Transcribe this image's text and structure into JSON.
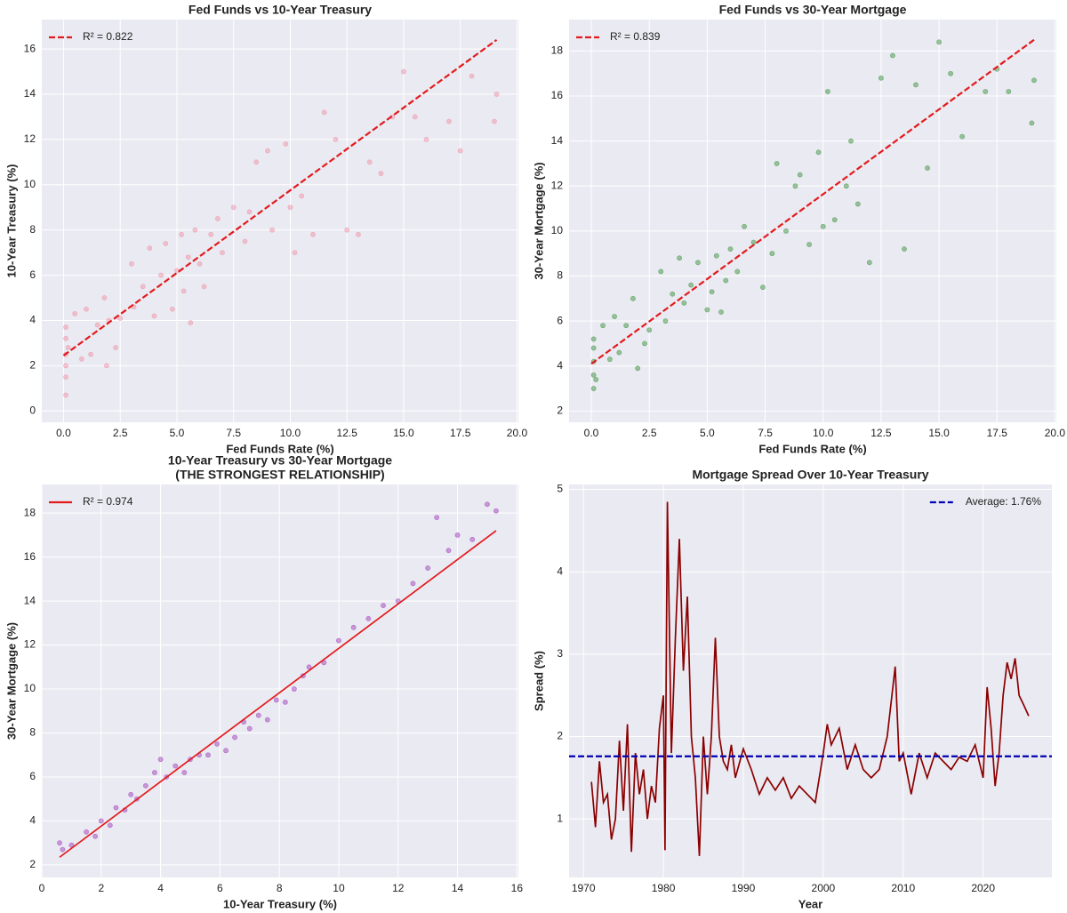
{
  "chart_data": [
    {
      "type": "scatter",
      "title": [
        "Fed Funds vs 10-Year Treasury"
      ],
      "xlabel": "Fed Funds Rate (%)",
      "ylabel": "10-Year Treasury (%)",
      "xlim": [
        -0.96,
        20.06
      ],
      "ylim": [
        -0.5,
        17.3
      ],
      "xticks": [
        {
          "value": 0,
          "label": "0.0"
        },
        2.5,
        {
          "value": 5,
          "label": "5.0"
        },
        7.5,
        {
          "value": 10,
          "label": "10.0"
        },
        12.5,
        {
          "value": 15,
          "label": "15.0"
        },
        17.5,
        {
          "value": 20,
          "label": "20.0"
        }
      ],
      "yticks": [
        0,
        2,
        4,
        6,
        8,
        10,
        12,
        14,
        16
      ],
      "grid": true,
      "legend": "upper left",
      "series": [
        {
          "type": "scatter",
          "color": "#f08ca0",
          "x": [
            0.1,
            0.1,
            0.1,
            0.1,
            0.1,
            0.1,
            0.2,
            0.5,
            0.8,
            1.0,
            1.2,
            1.5,
            1.8,
            1.9,
            2.0,
            2.3,
            2.5,
            3.0,
            3.1,
            3.5,
            3.8,
            4.0,
            4.3,
            4.5,
            4.8,
            5.0,
            5.2,
            5.3,
            5.5,
            5.6,
            5.8,
            6.0,
            6.2,
            6.5,
            6.8,
            7.0,
            7.5,
            8.0,
            8.2,
            8.5,
            9.0,
            9.2,
            9.8,
            10.0,
            10.2,
            10.5,
            11.0,
            11.5,
            12.0,
            12.5,
            13.0,
            13.5,
            14.0,
            14.5,
            15.0,
            15.5,
            16.0,
            17.0,
            17.5,
            18.0,
            19.0,
            19.1
          ],
          "values": [
            2.0,
            2.5,
            3.2,
            1.5,
            0.7,
            3.7,
            2.8,
            4.3,
            2.3,
            4.5,
            2.5,
            3.8,
            5.0,
            2.0,
            4.0,
            2.8,
            4.1,
            6.5,
            4.6,
            5.5,
            7.2,
            4.2,
            6.0,
            7.4,
            4.5,
            6.2,
            7.8,
            5.3,
            6.8,
            3.9,
            8.0,
            6.5,
            5.5,
            7.8,
            8.5,
            7.0,
            9.0,
            7.5,
            8.8,
            11.0,
            11.5,
            8.0,
            11.8,
            9.0,
            7.0,
            9.5,
            7.8,
            13.2,
            12.0,
            8.0,
            7.8,
            11.0,
            10.5,
            13.0,
            15.0,
            13.0,
            12.0,
            12.8,
            11.5,
            14.8,
            12.8,
            14.0
          ]
        },
        {
          "type": "line",
          "name": "R² = 0.822",
          "color": "#e31a1c",
          "dash": true,
          "x": [
            0,
            19.1
          ],
          "values": [
            2.45,
            16.4
          ]
        }
      ]
    },
    {
      "type": "scatter",
      "title": [
        "Fed Funds vs 30-Year Mortgage"
      ],
      "xlabel": "Fed Funds Rate (%)",
      "ylabel": "30-Year Mortgage (%)",
      "xlim": [
        -0.96,
        20.06
      ],
      "ylim": [
        1.5,
        19.4
      ],
      "xticks": [
        {
          "value": 0,
          "label": "0.0"
        },
        2.5,
        {
          "value": 5,
          "label": "5.0"
        },
        7.5,
        {
          "value": 10,
          "label": "10.0"
        },
        12.5,
        {
          "value": 15,
          "label": "15.0"
        },
        17.5,
        {
          "value": 20,
          "label": "20.0"
        }
      ],
      "yticks": [
        2,
        4,
        6,
        8,
        10,
        12,
        14,
        16,
        18
      ],
      "grid": true,
      "legend": "upper left",
      "series": [
        {
          "type": "scatter",
          "color": "#2e8b2e",
          "x": [
            0.1,
            0.1,
            0.1,
            0.1,
            0.1,
            0.2,
            0.5,
            0.8,
            1.0,
            1.2,
            1.5,
            1.8,
            2.0,
            2.3,
            2.5,
            3.0,
            3.2,
            3.5,
            3.8,
            4.0,
            4.3,
            4.6,
            5.0,
            5.2,
            5.4,
            5.6,
            5.8,
            6.0,
            6.3,
            6.6,
            7.0,
            7.4,
            7.8,
            8.0,
            8.4,
            8.8,
            9.0,
            9.4,
            9.8,
            10.0,
            10.2,
            10.5,
            11.0,
            11.2,
            11.5,
            12.0,
            12.5,
            13.0,
            13.5,
            14.0,
            14.5,
            15.0,
            15.5,
            16.0,
            17.0,
            17.5,
            18.0,
            19.0,
            19.1
          ],
          "values": [
            3.0,
            3.6,
            4.2,
            4.8,
            5.2,
            3.4,
            5.8,
            4.3,
            6.2,
            4.6,
            5.8,
            7.0,
            3.9,
            5.0,
            5.6,
            8.2,
            6.0,
            7.2,
            8.8,
            6.8,
            7.6,
            8.6,
            6.5,
            7.3,
            8.9,
            6.4,
            7.8,
            9.2,
            8.2,
            10.2,
            9.5,
            7.5,
            9.0,
            13.0,
            10.0,
            12.0,
            12.5,
            9.4,
            13.5,
            10.2,
            16.2,
            10.5,
            12.0,
            14.0,
            11.2,
            8.6,
            16.8,
            17.8,
            9.2,
            16.5,
            12.8,
            18.4,
            17.0,
            14.2,
            16.2,
            17.2,
            16.2,
            14.8,
            16.7
          ]
        },
        {
          "type": "line",
          "name": "R² = 0.839",
          "color": "#e31a1c",
          "dash": true,
          "x": [
            0,
            19.1
          ],
          "values": [
            4.1,
            18.5
          ]
        }
      ]
    },
    {
      "type": "scatter",
      "title": [
        "10-Year Treasury vs 30-Year Mortgage",
        "(THE STRONGEST RELATIONSHIP)"
      ],
      "xlabel": "10-Year Treasury (%)",
      "ylabel": "30-Year Mortgage (%)",
      "xlim": [
        0,
        16.05
      ],
      "ylim": [
        1.43,
        19.3
      ],
      "xticks": [
        0,
        2,
        4,
        6,
        8,
        10,
        12,
        14,
        16
      ],
      "yticks": [
        2,
        4,
        6,
        8,
        10,
        12,
        14,
        16,
        18
      ],
      "grid": true,
      "legend": "upper left",
      "series": [
        {
          "type": "scatter",
          "color": "#9932b4",
          "x": [
            0.6,
            0.7,
            1.0,
            1.5,
            1.8,
            2.0,
            2.3,
            2.5,
            2.8,
            3.0,
            3.2,
            3.5,
            3.8,
            4.0,
            4.2,
            4.5,
            4.8,
            5.0,
            5.3,
            5.6,
            5.9,
            6.2,
            6.5,
            6.8,
            7.0,
            7.3,
            7.6,
            7.9,
            8.2,
            8.5,
            8.8,
            9.0,
            9.5,
            10.0,
            10.5,
            11.0,
            11.5,
            12.0,
            12.5,
            13.0,
            13.3,
            13.7,
            14.0,
            14.5,
            15.0,
            15.3
          ],
          "values": [
            3.0,
            2.7,
            2.9,
            3.5,
            3.3,
            4.0,
            3.8,
            4.6,
            4.5,
            5.2,
            5.0,
            5.6,
            6.2,
            6.8,
            6.0,
            6.5,
            6.2,
            6.8,
            7.0,
            7.0,
            7.5,
            7.2,
            7.8,
            8.5,
            8.2,
            8.8,
            8.6,
            9.5,
            9.4,
            10.0,
            10.6,
            11.0,
            11.2,
            12.2,
            12.8,
            13.2,
            13.8,
            14.0,
            14.8,
            15.5,
            17.8,
            16.3,
            17.0,
            16.8,
            18.4,
            18.1
          ]
        },
        {
          "type": "line",
          "name": "R² = 0.974",
          "color": "#e31a1c",
          "dash": false,
          "x": [
            0.6,
            15.3
          ],
          "values": [
            2.35,
            17.2
          ]
        }
      ]
    },
    {
      "type": "line",
      "title": [
        "Mortgage Spread Over 10-Year Treasury"
      ],
      "xlabel": "Year",
      "ylabel": "Spread (%)",
      "xlim": [
        1968.2,
        2028.6
      ],
      "ylim": [
        0.29,
        5.06
      ],
      "xticks": [
        1970,
        1980,
        1990,
        2000,
        2010,
        2020
      ],
      "yticks": [
        1,
        2,
        3,
        4,
        5
      ],
      "grid": true,
      "legend": "upper right",
      "series": [
        {
          "type": "line",
          "color": "#8b0000",
          "dash": false,
          "x": [
            1971,
            1971.5,
            1972,
            1972.5,
            1973,
            1973.5,
            1974,
            1974.5,
            1975,
            1975.5,
            1976,
            1976.5,
            1977,
            1977.5,
            1978,
            1978.5,
            1979,
            1979.5,
            1980,
            1980.2,
            1980.5,
            1981,
            1981.5,
            1982,
            1982.5,
            1983,
            1983.5,
            1984,
            1984.5,
            1985,
            1985.5,
            1986,
            1986.5,
            1987,
            1987.5,
            1988,
            1988.5,
            1989,
            1990,
            1991,
            1992,
            1993,
            1994,
            1995,
            1996,
            1997,
            1998,
            1999,
            2000,
            2000.5,
            2001,
            2002,
            2003,
            2004,
            2005,
            2006,
            2007,
            2008,
            2009,
            2009.5,
            2010,
            2011,
            2012,
            2013,
            2014,
            2015,
            2016,
            2017,
            2018,
            2019,
            2020,
            2020.5,
            2021,
            2021.5,
            2022,
            2022.5,
            2023,
            2023.5,
            2024,
            2024.5,
            2025,
            2025.7
          ],
          "values": [
            1.45,
            0.9,
            1.7,
            1.2,
            1.3,
            0.75,
            1.0,
            1.95,
            1.1,
            2.15,
            0.6,
            1.8,
            1.3,
            1.6,
            1.0,
            1.4,
            1.2,
            2.1,
            2.5,
            0.62,
            4.85,
            1.8,
            3.2,
            4.4,
            2.8,
            3.7,
            2.0,
            1.5,
            0.55,
            2.0,
            1.3,
            2.0,
            3.2,
            2.0,
            1.7,
            1.6,
            1.9,
            1.5,
            1.85,
            1.6,
            1.3,
            1.5,
            1.35,
            1.5,
            1.25,
            1.4,
            1.3,
            1.2,
            1.8,
            2.15,
            1.9,
            2.1,
            1.6,
            1.9,
            1.6,
            1.5,
            1.6,
            2.0,
            2.85,
            1.7,
            1.8,
            1.3,
            1.8,
            1.5,
            1.8,
            1.7,
            1.6,
            1.75,
            1.7,
            1.9,
            1.5,
            2.6,
            2.1,
            1.4,
            1.8,
            2.5,
            2.9,
            2.7,
            2.95,
            2.5,
            2.4,
            2.25
          ]
        }
      ],
      "hlines": [
        {
          "name": "Average: 1.76%",
          "value": 1.76,
          "color": "#0000b4",
          "dash": true
        }
      ]
    }
  ]
}
